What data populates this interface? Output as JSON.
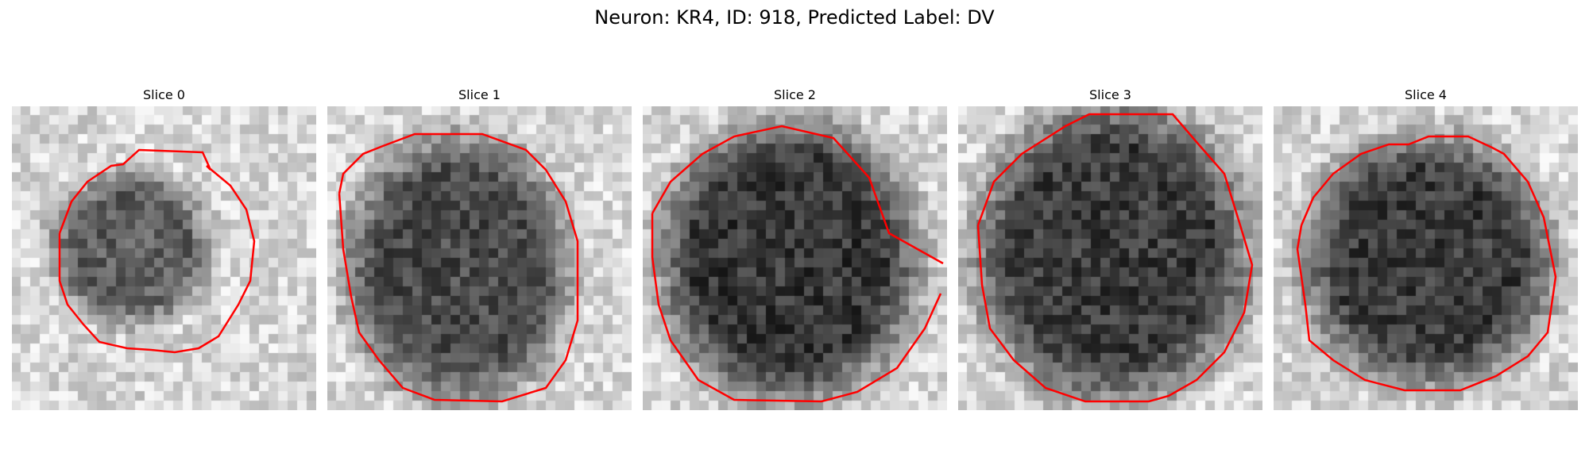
{
  "figure": {
    "title": "Neuron: KR4, ID: 918, Predicted Label: DV",
    "contour_color": "#ff0000"
  },
  "panels": [
    {
      "title": "Slice 0"
    },
    {
      "title": "Slice 1"
    },
    {
      "title": "Slice 2"
    },
    {
      "title": "Slice 3"
    },
    {
      "title": "Slice 4"
    }
  ]
}
